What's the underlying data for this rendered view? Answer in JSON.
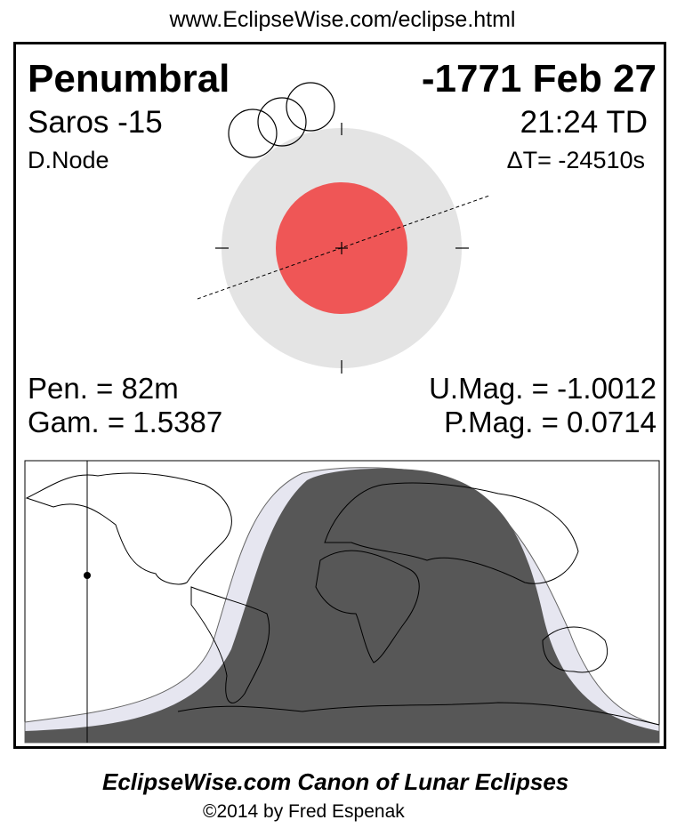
{
  "url": "www.EclipseWise.com/eclipse.html",
  "eclipse_type": "Penumbral",
  "date": "-1771 Feb 27",
  "saros": "Saros -15",
  "time": "21:24 TD",
  "node": "D.Node",
  "delta_t": "ΔT= -24510s",
  "pen_duration": "Pen. =  82m",
  "gamma": "Gam. = 1.5387",
  "umbral_mag": "U.Mag. = -1.0012",
  "penumbral_mag": "P.Mag. = 0.0714",
  "footer_title": "EclipseWise.com Canon of Lunar Eclipses",
  "copyright": "©2014 by Fred Espenak",
  "colors": {
    "penumbra": "#e4e4e4",
    "umbra": "#ef5656",
    "map_umbra_visible": "#575757",
    "map_penumbra_visible": "#e6e6f0"
  }
}
